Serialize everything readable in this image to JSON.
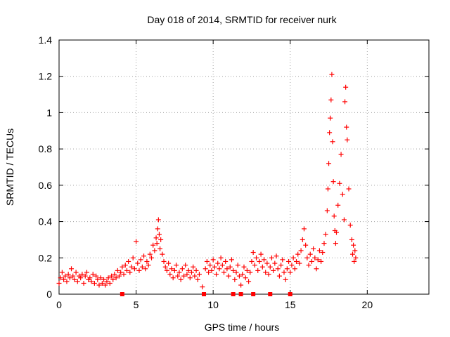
{
  "chart_data": {
    "type": "scatter",
    "title": "Day 018 of 2014, SRMTID for receiver nurk",
    "xlabel": "GPS time / hours",
    "ylabel": "SRMTID / TECUs",
    "xlim": [
      0,
      24
    ],
    "ylim": [
      0,
      1.4
    ],
    "x_ticks": [
      "0",
      "5",
      "10",
      "15",
      "20"
    ],
    "y_ticks": [
      "0",
      "0.2",
      "0.4",
      "0.6",
      "0.8",
      "1",
      "1.2",
      "1.4"
    ],
    "grid": true,
    "marker": "+",
    "color": "#ff0000",
    "series": [
      {
        "name": "SRMTID",
        "points": [
          [
            0.0,
            0.06
          ],
          [
            0.1,
            0.09
          ],
          [
            0.2,
            0.12
          ],
          [
            0.3,
            0.08
          ],
          [
            0.4,
            0.1
          ],
          [
            0.5,
            0.07
          ],
          [
            0.6,
            0.11
          ],
          [
            0.7,
            0.09
          ],
          [
            0.8,
            0.14
          ],
          [
            0.9,
            0.1
          ],
          [
            1.0,
            0.08
          ],
          [
            1.1,
            0.12
          ],
          [
            1.2,
            0.07
          ],
          [
            1.3,
            0.1
          ],
          [
            1.4,
            0.09
          ],
          [
            1.5,
            0.11
          ],
          [
            1.6,
            0.06
          ],
          [
            1.7,
            0.1
          ],
          [
            1.8,
            0.12
          ],
          [
            1.9,
            0.08
          ],
          [
            2.0,
            0.09
          ],
          [
            2.1,
            0.07
          ],
          [
            2.2,
            0.11
          ],
          [
            2.3,
            0.06
          ],
          [
            2.4,
            0.1
          ],
          [
            2.5,
            0.08
          ],
          [
            2.6,
            0.05
          ],
          [
            2.7,
            0.09
          ],
          [
            2.8,
            0.06
          ],
          [
            2.9,
            0.08
          ],
          [
            3.0,
            0.05
          ],
          [
            3.1,
            0.07
          ],
          [
            3.2,
            0.09
          ],
          [
            3.3,
            0.06
          ],
          [
            3.4,
            0.1
          ],
          [
            3.5,
            0.08
          ],
          [
            3.6,
            0.11
          ],
          [
            3.7,
            0.09
          ],
          [
            3.8,
            0.13
          ],
          [
            3.9,
            0.1
          ],
          [
            4.0,
            0.12
          ],
          [
            4.1,
            0.15
          ],
          [
            4.2,
            0.11
          ],
          [
            4.3,
            0.16
          ],
          [
            4.4,
            0.13
          ],
          [
            4.5,
            0.18
          ],
          [
            4.6,
            0.12
          ],
          [
            4.7,
            0.15
          ],
          [
            4.8,
            0.2
          ],
          [
            4.9,
            0.14
          ],
          [
            5.0,
            0.29
          ],
          [
            5.1,
            0.17
          ],
          [
            5.2,
            0.13
          ],
          [
            5.3,
            0.19
          ],
          [
            5.4,
            0.15
          ],
          [
            5.5,
            0.21
          ],
          [
            5.6,
            0.14
          ],
          [
            5.7,
            0.18
          ],
          [
            5.8,
            0.16
          ],
          [
            5.9,
            0.22
          ],
          [
            6.0,
            0.2
          ],
          [
            6.1,
            0.27
          ],
          [
            6.2,
            0.24
          ],
          [
            6.3,
            0.31
          ],
          [
            6.35,
            0.28
          ],
          [
            6.4,
            0.36
          ],
          [
            6.45,
            0.41
          ],
          [
            6.5,
            0.33
          ],
          [
            6.55,
            0.25
          ],
          [
            6.6,
            0.3
          ],
          [
            6.7,
            0.22
          ],
          [
            6.8,
            0.18
          ],
          [
            6.9,
            0.15
          ],
          [
            7.0,
            0.13
          ],
          [
            7.1,
            0.17
          ],
          [
            7.2,
            0.11
          ],
          [
            7.3,
            0.14
          ],
          [
            7.4,
            0.09
          ],
          [
            7.5,
            0.13
          ],
          [
            7.6,
            0.16
          ],
          [
            7.7,
            0.1
          ],
          [
            7.8,
            0.12
          ],
          [
            7.9,
            0.08
          ],
          [
            8.0,
            0.14
          ],
          [
            8.1,
            0.1
          ],
          [
            8.2,
            0.16
          ],
          [
            8.3,
            0.11
          ],
          [
            8.4,
            0.13
          ],
          [
            8.5,
            0.09
          ],
          [
            8.6,
            0.12
          ],
          [
            8.7,
            0.15
          ],
          [
            8.8,
            0.1
          ],
          [
            8.9,
            0.13
          ],
          [
            9.0,
            0.08
          ],
          [
            9.1,
            0.11
          ],
          [
            9.3,
            0.04
          ],
          [
            9.5,
            0.14
          ],
          [
            9.6,
            0.18
          ],
          [
            9.7,
            0.12
          ],
          [
            9.8,
            0.16
          ],
          [
            9.9,
            0.13
          ],
          [
            10.0,
            0.19
          ],
          [
            10.1,
            0.15
          ],
          [
            10.2,
            0.11
          ],
          [
            10.3,
            0.17
          ],
          [
            10.4,
            0.14
          ],
          [
            10.5,
            0.2
          ],
          [
            10.6,
            0.16
          ],
          [
            10.7,
            0.12
          ],
          [
            10.8,
            0.18
          ],
          [
            10.9,
            0.14
          ],
          [
            11.0,
            0.1
          ],
          [
            11.1,
            0.15
          ],
          [
            11.2,
            0.19
          ],
          [
            11.3,
            0.13
          ],
          [
            11.4,
            0.08
          ],
          [
            11.5,
            0.12
          ],
          [
            11.6,
            0.16
          ],
          [
            11.7,
            0.1
          ],
          [
            11.8,
            0.05
          ],
          [
            11.9,
            0.11
          ],
          [
            12.0,
            0.15
          ],
          [
            12.1,
            0.09
          ],
          [
            12.2,
            0.13
          ],
          [
            12.3,
            0.07
          ],
          [
            12.4,
            0.12
          ],
          [
            12.5,
            0.18
          ],
          [
            12.6,
            0.23
          ],
          [
            12.7,
            0.16
          ],
          [
            12.8,
            0.2
          ],
          [
            12.9,
            0.13
          ],
          [
            13.0,
            0.18
          ],
          [
            13.1,
            0.22
          ],
          [
            13.2,
            0.15
          ],
          [
            13.3,
            0.19
          ],
          [
            13.4,
            0.12
          ],
          [
            13.5,
            0.17
          ],
          [
            13.6,
            0.11
          ],
          [
            13.7,
            0.15
          ],
          [
            13.8,
            0.2
          ],
          [
            13.9,
            0.13
          ],
          [
            14.0,
            0.17
          ],
          [
            14.1,
            0.21
          ],
          [
            14.2,
            0.14
          ],
          [
            14.3,
            0.1
          ],
          [
            14.4,
            0.16
          ],
          [
            14.5,
            0.19
          ],
          [
            14.6,
            0.12
          ],
          [
            14.7,
            0.08
          ],
          [
            14.8,
            0.14
          ],
          [
            14.9,
            0.18
          ],
          [
            15.0,
            0.12
          ],
          [
            15.1,
            0.16
          ],
          [
            15.2,
            0.2
          ],
          [
            15.3,
            0.14
          ],
          [
            15.4,
            0.18
          ],
          [
            15.5,
            0.22
          ],
          [
            15.6,
            0.17
          ],
          [
            15.7,
            0.24
          ],
          [
            15.8,
            0.3
          ],
          [
            15.9,
            0.36
          ],
          [
            16.0,
            0.27
          ],
          [
            16.1,
            0.2
          ],
          [
            16.2,
            0.16
          ],
          [
            16.3,
            0.22
          ],
          [
            16.4,
            0.18
          ],
          [
            16.5,
            0.25
          ],
          [
            16.6,
            0.2
          ],
          [
            16.7,
            0.14
          ],
          [
            16.8,
            0.19
          ],
          [
            16.9,
            0.24
          ],
          [
            17.0,
            0.18
          ],
          [
            17.1,
            0.23
          ],
          [
            17.2,
            0.28
          ],
          [
            17.3,
            0.33
          ],
          [
            17.4,
            0.46
          ],
          [
            17.45,
            0.58
          ],
          [
            17.5,
            0.72
          ],
          [
            17.55,
            0.89
          ],
          [
            17.6,
            0.97
          ],
          [
            17.65,
            1.07
          ],
          [
            17.7,
            1.21
          ],
          [
            17.75,
            0.84
          ],
          [
            17.8,
            0.62
          ],
          [
            17.85,
            0.43
          ],
          [
            17.9,
            0.35
          ],
          [
            17.95,
            0.28
          ],
          [
            18.0,
            0.34
          ],
          [
            18.1,
            0.49
          ],
          [
            18.2,
            0.61
          ],
          [
            18.3,
            0.77
          ],
          [
            18.4,
            0.55
          ],
          [
            18.5,
            0.41
          ],
          [
            18.55,
            1.06
          ],
          [
            18.6,
            1.14
          ],
          [
            18.65,
            0.92
          ],
          [
            18.7,
            0.85
          ],
          [
            18.8,
            0.58
          ],
          [
            18.9,
            0.38
          ],
          [
            19.0,
            0.3
          ],
          [
            19.05,
            0.22
          ],
          [
            19.1,
            0.27
          ],
          [
            19.15,
            0.18
          ],
          [
            19.2,
            0.24
          ],
          [
            19.25,
            0.2
          ]
        ]
      }
    ],
    "baseline_markers_x": [
      4.1,
      9.4,
      11.3,
      11.8,
      12.6,
      13.7,
      15.0
    ]
  }
}
